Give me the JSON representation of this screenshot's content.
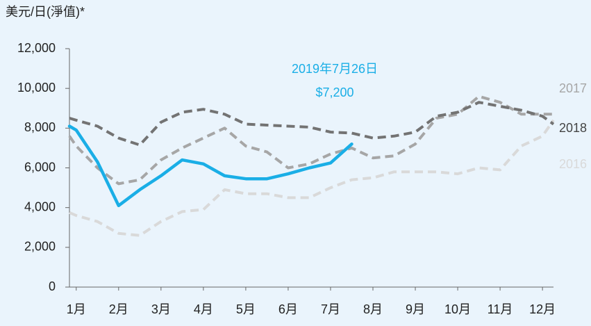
{
  "chart_data": {
    "type": "line",
    "title": "美元/日(淨值)*",
    "x": [
      0.84,
      1.0,
      1.5,
      2.0,
      2.5,
      3.0,
      3.5,
      4.0,
      4.5,
      5.0,
      5.5,
      6.0,
      6.5,
      7.0,
      7.5,
      8.0,
      8.5,
      9.0,
      9.5,
      10.0,
      10.5,
      11.0,
      11.5,
      12.0,
      12.26
    ],
    "xlim": [
      0.84,
      12.26
    ],
    "xticks": [
      {
        "value": 1,
        "label": "1月"
      },
      {
        "value": 2,
        "label": "2月"
      },
      {
        "value": 3,
        "label": "3月"
      },
      {
        "value": 4,
        "label": "4月"
      },
      {
        "value": 5,
        "label": "5月"
      },
      {
        "value": 6,
        "label": "6月"
      },
      {
        "value": 7,
        "label": "7月"
      },
      {
        "value": 8,
        "label": "8月"
      },
      {
        "value": 9,
        "label": "9月"
      },
      {
        "value": 10,
        "label": "10月"
      },
      {
        "value": 11,
        "label": "11月"
      },
      {
        "value": 12,
        "label": "12月"
      }
    ],
    "ylim": [
      0,
      12000
    ],
    "yticks": [
      0,
      {
        "value": 2000,
        "label": "2,000"
      },
      {
        "value": 4000,
        "label": "4,000"
      },
      {
        "value": 6000,
        "label": "6,000"
      },
      {
        "value": 8000,
        "label": "8,000"
      },
      {
        "value": 10000,
        "label": "10,000"
      },
      {
        "value": 12000,
        "label": "12,000"
      }
    ],
    "series": [
      {
        "name": "2016",
        "color": "#d9d9d9",
        "dashed": true,
        "values": [
          3750,
          3600,
          3300,
          2700,
          2600,
          3300,
          3800,
          3900,
          4900,
          4700,
          4700,
          4500,
          4500,
          5000,
          5400,
          5500,
          5800,
          5800,
          5800,
          5700,
          6000,
          5900,
          7100,
          7600,
          8400
        ]
      },
      {
        "name": "2017",
        "color": "#a6a6a6",
        "dashed": true,
        "values": [
          7600,
          7100,
          6000,
          5200,
          5400,
          6400,
          7000,
          7500,
          8000,
          7100,
          6800,
          6000,
          6200,
          6700,
          7000,
          6500,
          6600,
          7200,
          8500,
          8700,
          9600,
          9300,
          8700,
          8700,
          8700
        ]
      },
      {
        "name": "2018",
        "color": "#737373",
        "dashed": true,
        "values": [
          8500,
          8400,
          8100,
          7500,
          7150,
          8300,
          8800,
          8950,
          8700,
          8200,
          8150,
          8100,
          8050,
          7800,
          7750,
          7500,
          7600,
          7800,
          8600,
          8800,
          9300,
          9100,
          8900,
          8600,
          8200
        ]
      },
      {
        "name": "2019",
        "color": "#1aaee6",
        "dashed": false,
        "values": [
          8100,
          7900,
          6300,
          4100,
          4900,
          5600,
          6400,
          6200,
          5600,
          5450,
          5450,
          5700,
          6000,
          6250,
          7200,
          null,
          null,
          null,
          null,
          null,
          null,
          null,
          null,
          null,
          null
        ]
      }
    ],
    "annotation": {
      "text": "2019年7月26日",
      "label": "$7,200"
    }
  }
}
